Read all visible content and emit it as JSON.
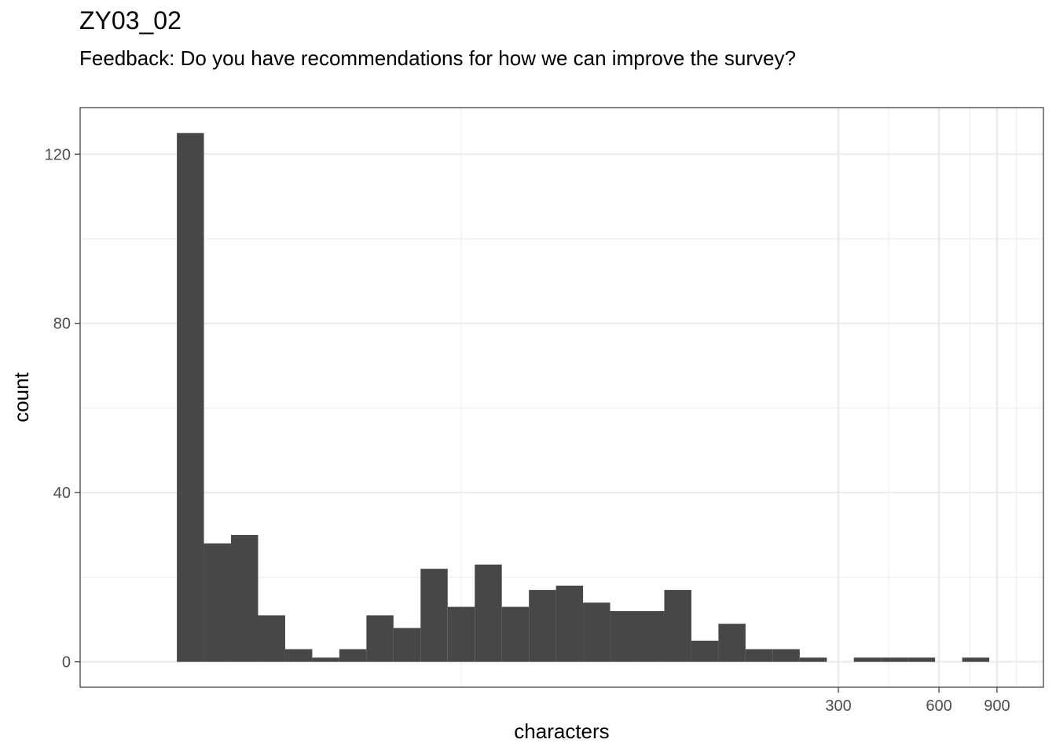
{
  "chart_data": {
    "type": "bar",
    "title": "ZY03_02",
    "subtitle": "Feedback: Do you have recommendations for how we can improve the survey?",
    "xlabel": "characters",
    "ylabel": "count",
    "x_scale": "log10",
    "x_ticks": [
      300,
      600,
      900
    ],
    "y_ticks": [
      0,
      40,
      80,
      120
    ],
    "ylim": [
      -6,
      131
    ],
    "grid": true,
    "bar_color": "#474747",
    "bins": [
      {
        "x_start": 0.5,
        "x_end": 0.64,
        "count": 125
      },
      {
        "x_start": 0.64,
        "x_end": 0.78,
        "count": 28
      },
      {
        "x_start": 0.78,
        "x_end": 0.92,
        "count": 30
      },
      {
        "x_start": 0.92,
        "x_end": 1.06,
        "count": 11
      },
      {
        "x_start": 1.06,
        "x_end": 1.2,
        "count": 3
      },
      {
        "x_start": 1.2,
        "x_end": 1.34,
        "count": 1
      },
      {
        "x_start": 1.34,
        "x_end": 1.48,
        "count": 3
      },
      {
        "x_start": 1.48,
        "x_end": 1.62,
        "count": 11
      },
      {
        "x_start": 1.62,
        "x_end": 1.76,
        "count": 8
      },
      {
        "x_start": 1.76,
        "x_end": 1.9,
        "count": 22
      },
      {
        "x_start": 1.9,
        "x_end": 2.04,
        "count": 13
      },
      {
        "x_start": 2.04,
        "x_end": 2.18,
        "count": 23
      },
      {
        "x_start": 2.18,
        "x_end": 2.32,
        "count": 13
      },
      {
        "x_start": 2.32,
        "x_end": 2.46,
        "count": 17
      },
      {
        "x_start": 2.46,
        "x_end": 2.6,
        "count": 18
      },
      {
        "x_start": 2.6,
        "x_end": 2.74,
        "count": 14
      },
      {
        "x_start": 2.74,
        "x_end": 2.88,
        "count": 12
      },
      {
        "x_start": 2.88,
        "x_end": 3.02,
        "count": 12
      },
      {
        "x_start": 3.02,
        "x_end": 3.16,
        "count": 17
      },
      {
        "x_start": 3.16,
        "x_end": 3.3,
        "count": 5
      },
      {
        "x_start": 3.3,
        "x_end": 3.44,
        "count": 9
      },
      {
        "x_start": 3.44,
        "x_end": 3.58,
        "count": 3
      },
      {
        "x_start": 3.58,
        "x_end": 3.72,
        "count": 3
      },
      {
        "x_start": 3.72,
        "x_end": 3.86,
        "count": 1
      },
      {
        "x_start": 3.86,
        "x_end": 4.0,
        "count": 0
      },
      {
        "x_start": 4.0,
        "x_end": 4.14,
        "count": 1
      },
      {
        "x_start": 4.14,
        "x_end": 4.28,
        "count": 1
      },
      {
        "x_start": 4.28,
        "x_end": 4.42,
        "count": 1
      },
      {
        "x_start": 4.42,
        "x_end": 4.56,
        "count": 0
      },
      {
        "x_start": 4.56,
        "x_end": 4.7,
        "count": 1
      }
    ],
    "x_ticks_transformed": [
      3.92,
      4.44,
      4.74
    ],
    "x_minor_grid_transformed": [
      1.97,
      4.18,
      4.6,
      4.84
    ]
  }
}
